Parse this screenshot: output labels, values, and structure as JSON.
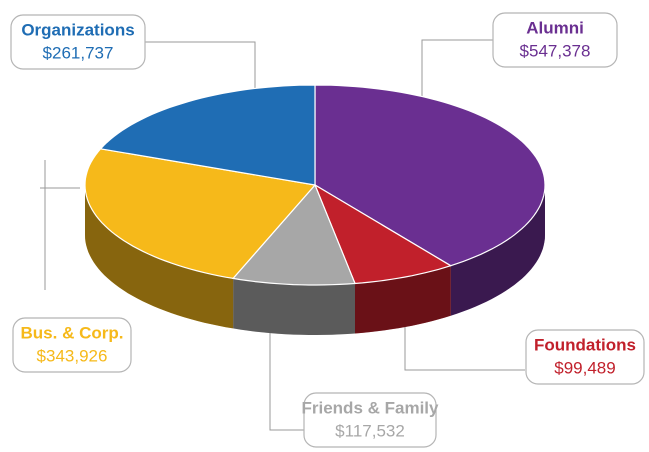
{
  "chart_data": {
    "type": "pie",
    "categories": [
      "Alumni",
      "Foundations",
      "Friends & Family",
      "Bus. & Corp.",
      "Organizations"
    ],
    "values": [
      547378,
      99489,
      117532,
      343926,
      261737
    ],
    "value_labels": [
      "$547,378",
      "$99,489",
      "$117,532",
      "$343,926",
      "$261,737"
    ],
    "colors": [
      "#6a2f91",
      "#c1202b",
      "#a7a7a7",
      "#f6b91a",
      "#1f6db4"
    ]
  }
}
